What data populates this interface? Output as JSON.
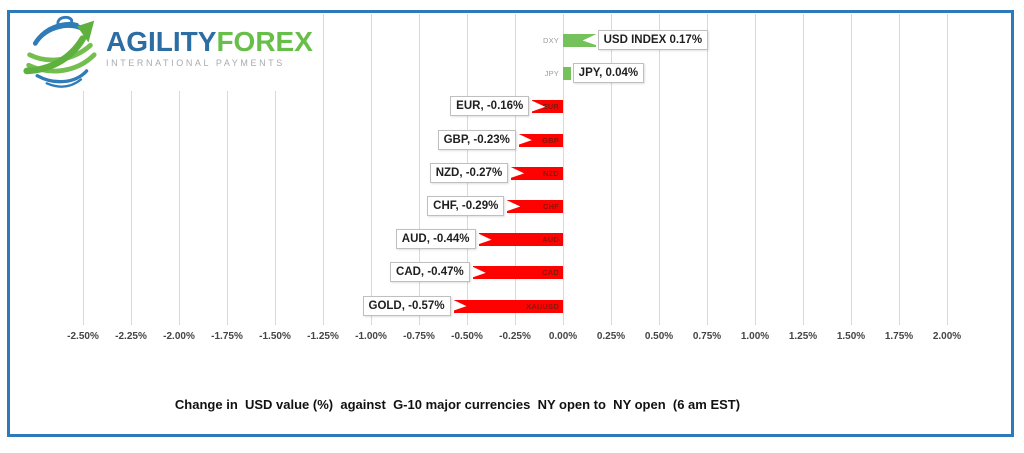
{
  "logo": {
    "brand_primary": "AGILITY",
    "brand_secondary": "FOREX",
    "tagline": "INTERNATIONAL PAYMENTS"
  },
  "chart_data": {
    "type": "bar",
    "orientation": "horizontal",
    "title": "Change in  USD value (%)  against  G-10 major currencies  NY open to  NY open  (6 am EST)",
    "xlabel": "",
    "ylabel": "",
    "xlim": [
      -2.5,
      2.0
    ],
    "tick_step_pct": 0.25,
    "grid": true,
    "tick_labels": [
      "-2.50%",
      "-2.25%",
      "-2.00%",
      "-1.75%",
      "-1.50%",
      "-1.25%",
      "-1.00%",
      "-0.75%",
      "-0.50%",
      "-0.25%",
      "0.00%",
      "0.25%",
      "0.50%",
      "0.75%",
      "1.00%",
      "1.25%",
      "1.50%",
      "1.75%",
      "2.00%"
    ],
    "points": [
      {
        "ticker": "DXY",
        "label": "USD INDEX 0.17%",
        "value_pct": 0.17
      },
      {
        "ticker": "JPY",
        "label": "JPY, 0.04%",
        "value_pct": 0.04
      },
      {
        "ticker": "EUR",
        "label": "EUR, -0.16%",
        "value_pct": -0.16
      },
      {
        "ticker": "GBP",
        "label": "GBP, -0.23%",
        "value_pct": -0.23
      },
      {
        "ticker": "NZD",
        "label": "NZD, -0.27%",
        "value_pct": -0.27
      },
      {
        "ticker": "CHF",
        "label": "CHF, -0.29%",
        "value_pct": -0.29
      },
      {
        "ticker": "AUD",
        "label": "AUD, -0.44%",
        "value_pct": -0.44
      },
      {
        "ticker": "CAD",
        "label": "CAD, -0.47%",
        "value_pct": -0.47
      },
      {
        "ticker": "XAUUSD",
        "label": "GOLD, -0.57%",
        "value_pct": -0.57
      }
    ],
    "colors": {
      "positive_bar": "#75C15C",
      "negative_bar": "#FE0202",
      "inbar_label_negative": "#8B1508",
      "ticker_label_positive": "#9B9B9B",
      "grid": "#D9D9D9",
      "axis_text": "#454545",
      "frame_border": "#2E79B9",
      "callout_border": "#BFBFBF"
    }
  }
}
